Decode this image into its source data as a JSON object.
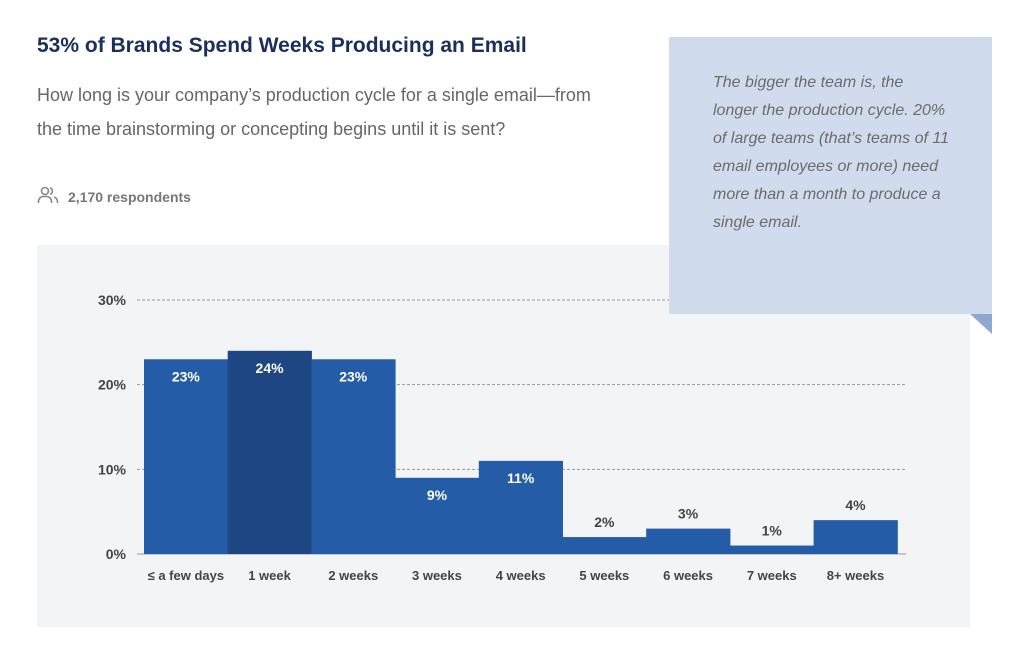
{
  "header": {
    "title": "53% of Brands Spend Weeks Producing an Email",
    "question": "How long is your company’s production cycle for a single email—from the time brainstorming or concepting begins until it is sent?",
    "respondents": "2,170 respondents",
    "respondents_icon": "users-icon"
  },
  "callout": {
    "text": "The bigger the team is, the longer the production cycle. 20% of large teams (that’s teams of 11 email employees or more) need more than a month to produce a single email."
  },
  "colors": {
    "bar": "#245ca8",
    "highlight": "#1e4683",
    "panel": "#f3f4f6",
    "callout": "#d0dcee",
    "title": "#1b2f5e"
  },
  "chart_data": {
    "type": "bar",
    "categories": [
      "≤ a few days",
      "1 week",
      "2 weeks",
      "3 weeks",
      "4 weeks",
      "5 weeks",
      "6 weeks",
      "7 weeks",
      "8+ weeks"
    ],
    "values": [
      23,
      24,
      23,
      9,
      11,
      2,
      3,
      1,
      4
    ],
    "value_labels": [
      "23%",
      "24%",
      "23%",
      "9%",
      "11%",
      "2%",
      "3%",
      "1%",
      "4%"
    ],
    "highlighted_category": "1 week",
    "ylim": [
      0,
      30
    ],
    "yticks": [
      0,
      10,
      20,
      30
    ],
    "ytick_labels": [
      "0%",
      "10%",
      "20%",
      "30%"
    ],
    "grid": true,
    "xlabel": "",
    "ylabel": ""
  }
}
